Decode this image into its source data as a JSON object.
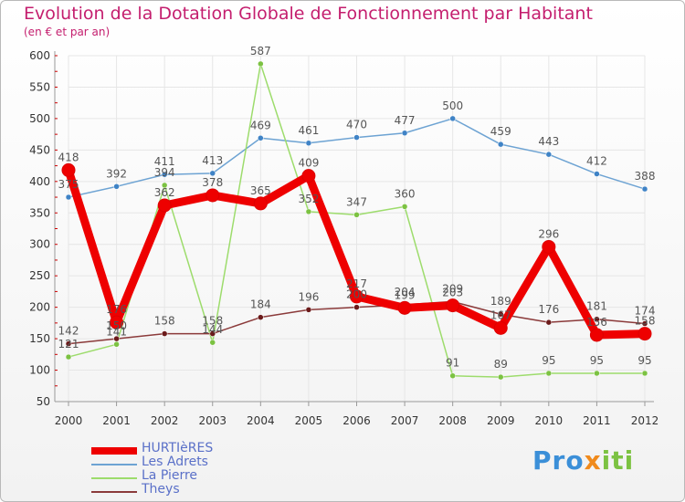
{
  "title": "Evolution de la Dotation Globale de Fonctionnement par Habitant",
  "subtitle": "(en € et par an)",
  "logo": {
    "part1": "Pro",
    "part2": "x",
    "part3": "iti"
  },
  "colors": {
    "title": "#c41e6e",
    "axis": "#999999",
    "grid": "#e6e6e6",
    "tick_mark": "#cc0000",
    "legend_text": "#5a70c8",
    "value_label": "#555555"
  },
  "chart_data": {
    "type": "line",
    "title": "Evolution de la Dotation Globale de Fonctionnement par Habitant",
    "subtitle": "(en € et par an)",
    "xlabel": "",
    "ylabel": "",
    "x": [
      "2000",
      "2001",
      "2002",
      "2003",
      "2004",
      "2005",
      "2006",
      "2007",
      "2008",
      "2009",
      "2010",
      "2011",
      "2012"
    ],
    "ylim": [
      50,
      600
    ],
    "yticks": [
      50,
      100,
      150,
      200,
      250,
      300,
      350,
      400,
      450,
      500,
      550,
      600
    ],
    "grid": true,
    "legend_position": "bottom-left",
    "series": [
      {
        "name": "HURTIèRES",
        "color": "#ee0000",
        "dot": "#dd0000",
        "values": [
          418,
          176,
          362,
          378,
          365,
          409,
          217,
          199,
          203,
          167,
          296,
          156,
          158
        ],
        "labels": [
          "418",
          "176",
          "362",
          "378",
          "365",
          "409",
          "217",
          "199",
          "203",
          "167",
          "296",
          "156",
          "158"
        ]
      },
      {
        "name": "Les Adrets",
        "color": "#6da3d3",
        "dot": "#3f83c6",
        "values": [
          375,
          392,
          411,
          413,
          469,
          461,
          470,
          477,
          500,
          459,
          443,
          412,
          388
        ],
        "labels": [
          "375",
          "392",
          "411",
          "413",
          "469",
          "461",
          "470",
          "477",
          "500",
          "459",
          "443",
          "412",
          "388"
        ]
      },
      {
        "name": "La Pierre",
        "color": "#9ddc6c",
        "dot": "#7cc242",
        "values": [
          121,
          141,
          394,
          144,
          587,
          352,
          347,
          360,
          91,
          89,
          95,
          95,
          95
        ],
        "labels": [
          "121",
          "141",
          "394",
          "144",
          "587",
          "352",
          "347",
          "360",
          "91",
          "89",
          "95",
          "95",
          "95"
        ]
      },
      {
        "name": "Theys",
        "color": "#8b3a3a",
        "dot": "#6b1a1a",
        "values": [
          142,
          150,
          158,
          158,
          184,
          196,
          200,
          204,
          209,
          189,
          176,
          181,
          174
        ],
        "labels": [
          "142",
          "150",
          "158",
          "158",
          "184",
          "196",
          "200",
          "204",
          "209",
          "189",
          "176",
          "181",
          "174"
        ]
      }
    ]
  }
}
